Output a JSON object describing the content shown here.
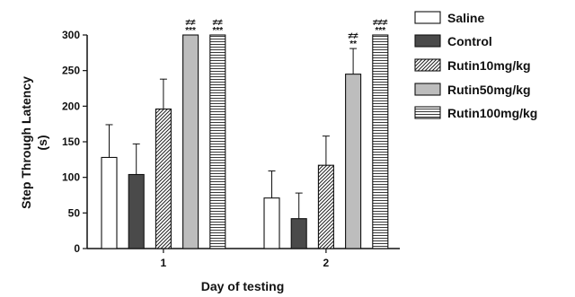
{
  "chart_data": {
    "type": "bar",
    "xlabel": "Day of testing",
    "ylabel": "Step Through Latency (s)",
    "ylabel_lines": [
      "Step Through Latency",
      "(s)"
    ],
    "ylim": [
      0,
      300
    ],
    "yticks": [
      0,
      50,
      100,
      150,
      200,
      250,
      300
    ],
    "grid": false,
    "legend_position": "right",
    "categories": [
      "1",
      "2"
    ],
    "series": [
      {
        "name": "Saline",
        "pattern": "open",
        "values": [
          128,
          71
        ],
        "errors": [
          46,
          38
        ],
        "annotations": [
          "",
          ""
        ]
      },
      {
        "name": "Control",
        "pattern": "dark",
        "values": [
          104,
          42
        ],
        "errors": [
          43,
          36
        ],
        "annotations": [
          "",
          ""
        ]
      },
      {
        "name": "Rutin10mg/kg",
        "pattern": "diagonal",
        "values": [
          196,
          117
        ],
        "errors": [
          42,
          41
        ],
        "annotations": [
          "",
          ""
        ]
      },
      {
        "name": "Rutin50mg/kg",
        "pattern": "gray",
        "values": [
          300,
          245
        ],
        "errors": [
          0,
          36
        ],
        "annotations": [
          [
            "≠≠",
            "***"
          ],
          [
            "≠≠",
            "**"
          ]
        ]
      },
      {
        "name": "Rutin100mg/kg",
        "pattern": "horizontal",
        "values": [
          300,
          300
        ],
        "errors": [
          0,
          0
        ],
        "annotations": [
          [
            "≠≠",
            "***"
          ],
          [
            "≠≠≠",
            "***"
          ]
        ]
      }
    ],
    "colors": {
      "open": "#ffffff",
      "dark": "#4a4a4a",
      "gray": "#bdbdbd",
      "stroke": "#111111"
    }
  }
}
